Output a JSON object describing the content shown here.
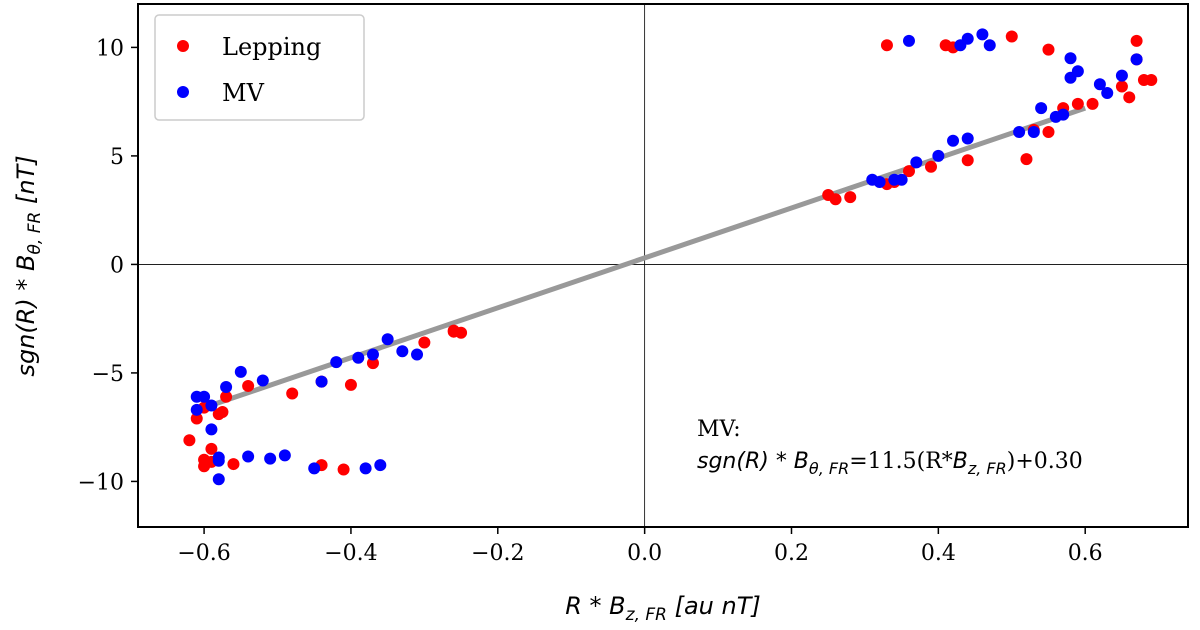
{
  "chart_data": {
    "type": "scatter",
    "title": "",
    "xlabel": "R * B_{z,FR} [au nT]",
    "ylabel": "sgn(R) * B_{θ,FR} [nT]",
    "xlim": [
      -0.69,
      0.74
    ],
    "ylim": [
      -12.1,
      12.0
    ],
    "x_ticks": [
      -0.6,
      -0.4,
      -0.2,
      0.0,
      0.2,
      0.4,
      0.6
    ],
    "x_tick_labels": [
      "−0.6",
      "−0.4",
      "−0.2",
      "0.0",
      "0.2",
      "0.4",
      "0.6"
    ],
    "y_ticks": [
      10,
      5,
      0,
      -5,
      -10
    ],
    "y_tick_labels": [
      "10",
      "5",
      "0",
      "−5",
      "−10"
    ],
    "grid": false,
    "reference_lines": {
      "x": 0,
      "y": 0
    },
    "legend": {
      "placement": "top-left",
      "entries": [
        "Lepping",
        "MV"
      ]
    },
    "series": [
      {
        "name": "Lepping",
        "color": "#ff0000",
        "points": [
          [
            -0.62,
            -8.1
          ],
          [
            -0.61,
            -7.1
          ],
          [
            -0.6,
            -9.0
          ],
          [
            -0.6,
            -9.3
          ],
          [
            -0.6,
            -6.6
          ],
          [
            -0.59,
            -8.5
          ],
          [
            -0.59,
            -9.1
          ],
          [
            -0.58,
            -6.9
          ],
          [
            -0.575,
            -6.8
          ],
          [
            -0.57,
            -6.1
          ],
          [
            -0.56,
            -9.2
          ],
          [
            -0.54,
            -5.6
          ],
          [
            -0.48,
            -5.95
          ],
          [
            -0.44,
            -5.4
          ],
          [
            -0.44,
            -9.25
          ],
          [
            -0.41,
            -9.45
          ],
          [
            -0.4,
            -5.55
          ],
          [
            -0.37,
            -4.55
          ],
          [
            -0.3,
            -3.6
          ],
          [
            -0.26,
            -3.05
          ],
          [
            -0.26,
            -3.1
          ],
          [
            -0.25,
            -3.15
          ],
          [
            0.25,
            3.2
          ],
          [
            0.26,
            3.0
          ],
          [
            0.28,
            3.1
          ],
          [
            0.33,
            10.1
          ],
          [
            0.33,
            3.7
          ],
          [
            0.34,
            3.8
          ],
          [
            0.36,
            4.3
          ],
          [
            0.39,
            4.5
          ],
          [
            0.41,
            10.1
          ],
          [
            0.42,
            10.0
          ],
          [
            0.44,
            4.8
          ],
          [
            0.5,
            10.5
          ],
          [
            0.52,
            4.85
          ],
          [
            0.53,
            6.2
          ],
          [
            0.55,
            6.1
          ],
          [
            0.55,
            9.9
          ],
          [
            0.57,
            7.2
          ],
          [
            0.59,
            7.4
          ],
          [
            0.61,
            7.4
          ],
          [
            0.65,
            8.2
          ],
          [
            0.66,
            7.7
          ],
          [
            0.67,
            10.3
          ],
          [
            0.67,
            9.45
          ],
          [
            0.68,
            8.5
          ],
          [
            0.69,
            8.5
          ]
        ]
      },
      {
        "name": "MV",
        "color": "#0000ff",
        "points": [
          [
            -0.61,
            -6.1
          ],
          [
            -0.61,
            -6.7
          ],
          [
            -0.6,
            -6.1
          ],
          [
            -0.59,
            -7.6
          ],
          [
            -0.59,
            -6.5
          ],
          [
            -0.58,
            -9.05
          ],
          [
            -0.58,
            -9.9
          ],
          [
            -0.58,
            -8.9
          ],
          [
            -0.57,
            -5.65
          ],
          [
            -0.55,
            -4.95
          ],
          [
            -0.54,
            -8.85
          ],
          [
            -0.52,
            -5.35
          ],
          [
            -0.51,
            -8.95
          ],
          [
            -0.49,
            -8.8
          ],
          [
            -0.45,
            -9.4
          ],
          [
            -0.44,
            -5.4
          ],
          [
            -0.42,
            -4.5
          ],
          [
            -0.39,
            -4.3
          ],
          [
            -0.38,
            -9.4
          ],
          [
            -0.37,
            -4.15
          ],
          [
            -0.36,
            -9.25
          ],
          [
            -0.35,
            -3.45
          ],
          [
            -0.33,
            -4.0
          ],
          [
            -0.31,
            -4.15
          ],
          [
            0.31,
            3.9
          ],
          [
            0.32,
            3.8
          ],
          [
            0.34,
            3.9
          ],
          [
            0.35,
            3.9
          ],
          [
            0.36,
            10.3
          ],
          [
            0.37,
            4.7
          ],
          [
            0.4,
            5.0
          ],
          [
            0.42,
            5.7
          ],
          [
            0.43,
            10.1
          ],
          [
            0.44,
            5.8
          ],
          [
            0.44,
            10.4
          ],
          [
            0.46,
            10.6
          ],
          [
            0.47,
            10.1
          ],
          [
            0.51,
            6.1
          ],
          [
            0.53,
            6.1
          ],
          [
            0.54,
            7.2
          ],
          [
            0.56,
            6.8
          ],
          [
            0.57,
            6.9
          ],
          [
            0.58,
            9.5
          ],
          [
            0.58,
            8.6
          ],
          [
            0.59,
            8.9
          ],
          [
            0.62,
            8.3
          ],
          [
            0.63,
            7.9
          ],
          [
            0.65,
            8.7
          ],
          [
            0.67,
            9.45
          ]
        ]
      }
    ],
    "fit_line": {
      "color": "#999999",
      "slope": 11.5,
      "intercept": 0.3,
      "x_range": [
        -0.61,
        0.6
      ]
    },
    "annotation": {
      "line1": "MV:",
      "line2_prefix": "sgn(R) * B",
      "line2_sub1": "θ, FR",
      "line2_mid": "=11.5(R*",
      "line2_b": "B",
      "line2_sub2": "z, FR",
      "line2_suffix": ")+0.30"
    }
  }
}
